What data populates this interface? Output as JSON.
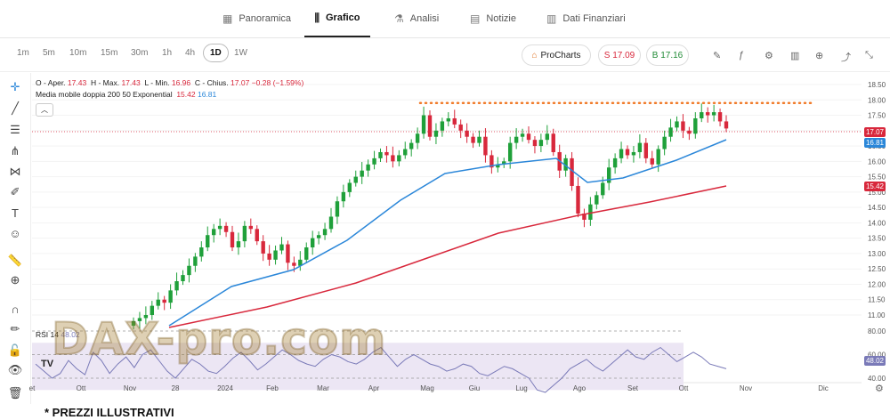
{
  "tabs": [
    {
      "label": "Panoramica",
      "icon": "grid-icon"
    },
    {
      "label": "Grafico",
      "icon": "candles-icon"
    },
    {
      "label": "Analisi",
      "icon": "flask-icon"
    },
    {
      "label": "Notizie",
      "icon": "news-icon"
    },
    {
      "label": "Dati Finanziari",
      "icon": "bars-icon"
    }
  ],
  "timeframes": [
    "1m",
    "5m",
    "10m",
    "15m",
    "30m",
    "1h",
    "4h",
    "1D",
    "1W"
  ],
  "selected_timeframe": "1D",
  "procharts_label": "ProCharts",
  "sell_label": "S 17.09",
  "buy_label": "B 17.16",
  "colors": {
    "up": "#1fa03a",
    "down": "#d8283c",
    "ma200": "#d8283c",
    "ma50": "#2b87d9",
    "rsi": "#7a7ab8",
    "resistance": "#f07a28"
  },
  "legend": {
    "ohlc": {
      "o_label": "O - Aper.",
      "o": "17.43",
      "h_label": "H - Max.",
      "h": "17.43",
      "l_label": "L - Min.",
      "l": "16.96",
      "c_label": "C - Chius.",
      "c": "17.07",
      "chg": "−0.28 (−1.59%)"
    },
    "ma_label": "Media mobile doppia 200 50 Exponential",
    "ma200": "15.42",
    "ma50": "16.81"
  },
  "rsi": {
    "label": "RSI 14",
    "value": "48.02"
  },
  "tags": {
    "last": "17.07",
    "ma50": "16.81",
    "ma200": "15.42",
    "rsi": "48.02"
  },
  "watermark": "DAX-pro.com",
  "tv_logo": "TV",
  "footnote": "* PREZZI ILLUSTRATIVI",
  "chart_data": {
    "type": "line",
    "price_ticks": [
      18.5,
      18.0,
      17.5,
      17.0,
      16.5,
      16.0,
      15.5,
      15.0,
      14.5,
      14.0,
      13.5,
      13.0,
      12.5,
      12.0,
      11.5,
      11.0
    ],
    "rsi_ticks": [
      80,
      60,
      40
    ],
    "x_labels": [
      "et",
      "Ott",
      "Nov",
      "28",
      "2024",
      "Feb",
      "Mar",
      "Apr",
      "Mag",
      "Giu",
      "Lug",
      "Ago",
      "Set",
      "Ott",
      "Nov",
      "Dic"
    ],
    "close": [
      10.8,
      10.9,
      11.0,
      11.3,
      11.5,
      11.4,
      11.8,
      12.1,
      12.3,
      12.6,
      12.9,
      13.2,
      13.6,
      13.8,
      13.9,
      13.7,
      13.2,
      13.4,
      13.9,
      13.8,
      13.4,
      13.0,
      12.8,
      13.1,
      13.3,
      12.7,
      12.6,
      12.8,
      13.2,
      13.5,
      13.6,
      13.8,
      14.2,
      14.7,
      15.0,
      15.3,
      15.5,
      15.7,
      15.9,
      16.1,
      16.3,
      16.2,
      16.0,
      16.2,
      16.4,
      16.6,
      16.9,
      17.5,
      16.8,
      17.0,
      17.3,
      17.4,
      17.2,
      17.0,
      16.8,
      16.6,
      16.8,
      16.2,
      15.8,
      15.9,
      16.0,
      16.6,
      16.8,
      16.9,
      16.7,
      16.5,
      16.7,
      16.9,
      16.3,
      15.7,
      16.1,
      15.2,
      14.3,
      14.1,
      14.6,
      14.9,
      15.3,
      15.8,
      16.1,
      16.4,
      16.2,
      16.3,
      16.6,
      16.1,
      15.9,
      16.4,
      16.8,
      17.1,
      17.3,
      17.0,
      16.9,
      17.4,
      17.6,
      17.5,
      17.6,
      17.3,
      17.07
    ],
    "ma200": [
      10.5,
      15.42
    ],
    "ma50": [
      10.4,
      16.81
    ],
    "resistance": 17.9,
    "rsi": [
      52,
      46,
      40,
      44,
      55,
      48,
      43,
      62,
      55,
      44,
      52,
      58,
      49,
      60,
      64,
      55,
      46,
      40,
      48,
      56,
      52,
      46,
      44,
      50,
      57,
      62,
      55,
      47,
      52,
      58,
      64,
      60,
      55,
      52,
      50,
      56,
      60,
      58,
      54,
      52,
      56,
      62,
      66,
      58,
      50,
      56,
      60,
      56,
      52,
      50,
      46,
      48,
      52,
      50,
      44,
      42,
      46,
      50,
      48,
      44,
      40,
      30,
      28,
      34,
      40,
      48,
      52,
      56,
      50,
      46,
      52,
      58,
      64,
      58,
      56,
      62,
      66,
      60,
      54,
      58,
      62,
      58,
      52,
      50,
      48.02
    ]
  }
}
